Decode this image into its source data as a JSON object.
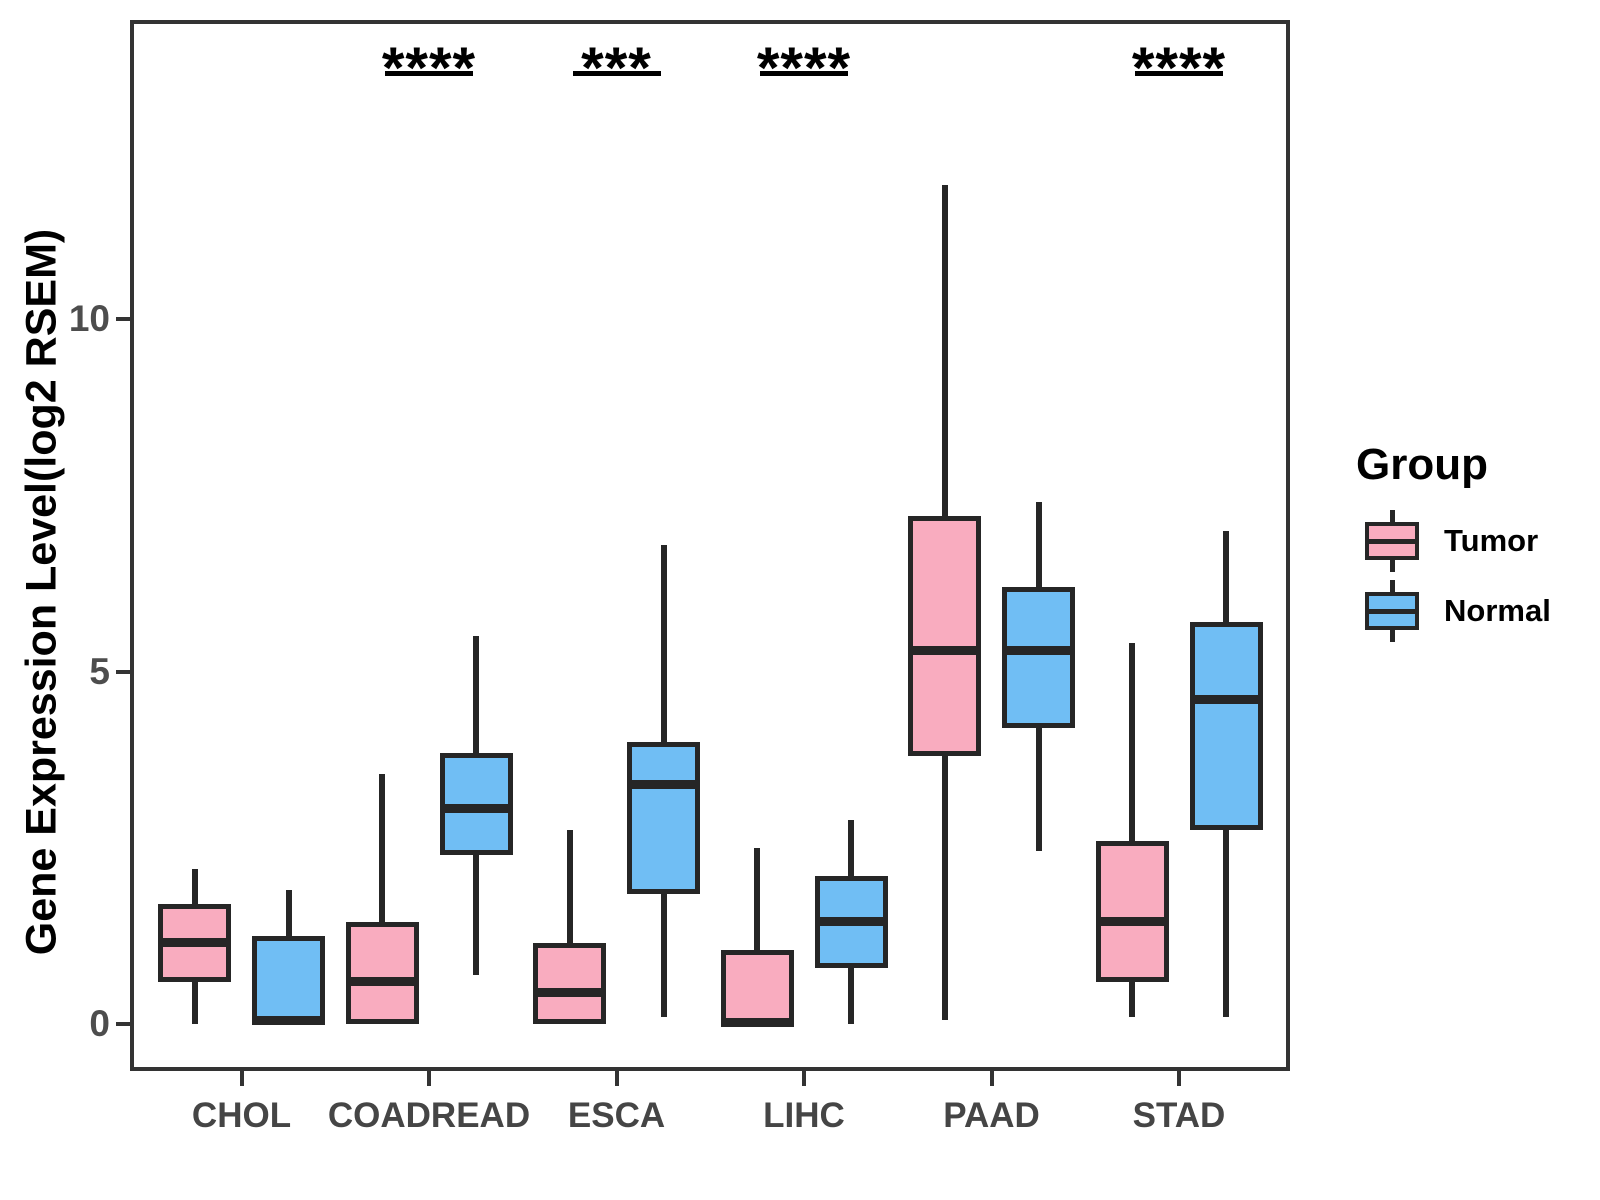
{
  "y_axis": {
    "title": "Gene Expression Level(log2 RSEM)",
    "ticks": [
      {
        "value": 0,
        "label": "0"
      },
      {
        "value": 5,
        "label": "5"
      },
      {
        "value": 10,
        "label": "10"
      }
    ]
  },
  "x_axis": {
    "categories": [
      "CHOL",
      "COADREAD",
      "ESCA",
      "LIHC",
      "PAAD",
      "STAD"
    ]
  },
  "legend": {
    "title": "Group",
    "items": [
      {
        "label": "Tumor",
        "color": "#F9ACBF"
      },
      {
        "label": "Normal",
        "color": "#70BEF4"
      }
    ]
  },
  "colors": {
    "tumor_fill": "#F9ACBF",
    "normal_fill": "#70BEF4",
    "stroke": "#262626",
    "axis_line": "#333333",
    "tick_text": "#4d4d4d",
    "category_text": "#454545",
    "annotation": "#000000"
  },
  "chart_data": {
    "type": "grouped_boxplot",
    "title": "",
    "xlabel": "",
    "ylabel": "Gene Expression Level(log2 RSEM)",
    "ylim": [
      -0.7,
      14.2
    ],
    "ytick_values": [
      0,
      5,
      10
    ],
    "grid": false,
    "legend_position": "right",
    "categories": [
      "CHOL",
      "COADREAD",
      "ESCA",
      "LIHC",
      "PAAD",
      "STAD"
    ],
    "series": [
      {
        "name": "Tumor",
        "color": "#F9ACBF",
        "boxes": [
          {
            "category": "CHOL",
            "min": 0.0,
            "q1": 0.6,
            "median": 1.15,
            "q3": 1.7,
            "max": 2.2
          },
          {
            "category": "COADREAD",
            "min": 0.0,
            "q1": 0.0,
            "median": 0.6,
            "q3": 1.45,
            "max": 3.55
          },
          {
            "category": "ESCA",
            "min": 0.0,
            "q1": 0.0,
            "median": 0.45,
            "q3": 1.15,
            "max": 2.75
          },
          {
            "category": "LIHC",
            "min": 0.0,
            "q1": 0.0,
            "median": 0.02,
            "q3": 1.05,
            "max": 2.5
          },
          {
            "category": "PAAD",
            "min": 0.05,
            "q1": 3.8,
            "median": 5.3,
            "q3": 7.2,
            "max": 11.9
          },
          {
            "category": "STAD",
            "min": 0.1,
            "q1": 0.6,
            "median": 1.45,
            "q3": 2.6,
            "max": 5.4
          }
        ]
      },
      {
        "name": "Normal",
        "color": "#70BEF4",
        "boxes": [
          {
            "category": "CHOL",
            "min": 0.0,
            "q1": 0.0,
            "median": 0.05,
            "q3": 1.25,
            "max": 1.9
          },
          {
            "category": "COADREAD",
            "min": 0.7,
            "q1": 2.4,
            "median": 3.05,
            "q3": 3.85,
            "max": 5.5
          },
          {
            "category": "ESCA",
            "min": 0.1,
            "q1": 1.85,
            "median": 3.4,
            "q3": 4.0,
            "max": 6.8
          },
          {
            "category": "LIHC",
            "min": 0.0,
            "q1": 0.8,
            "median": 1.45,
            "q3": 2.1,
            "max": 2.9
          },
          {
            "category": "PAAD",
            "min": 2.45,
            "q1": 4.2,
            "median": 5.3,
            "q3": 6.2,
            "max": 7.4
          },
          {
            "category": "STAD",
            "min": 0.1,
            "q1": 2.75,
            "median": 4.6,
            "q3": 5.7,
            "max": 7.0
          }
        ]
      }
    ],
    "significance": [
      {
        "category": "COADREAD",
        "label": "****"
      },
      {
        "category": "ESCA",
        "label": "***"
      },
      {
        "category": "LIHC",
        "label": "****"
      },
      {
        "category": "STAD",
        "label": "****"
      }
    ]
  }
}
